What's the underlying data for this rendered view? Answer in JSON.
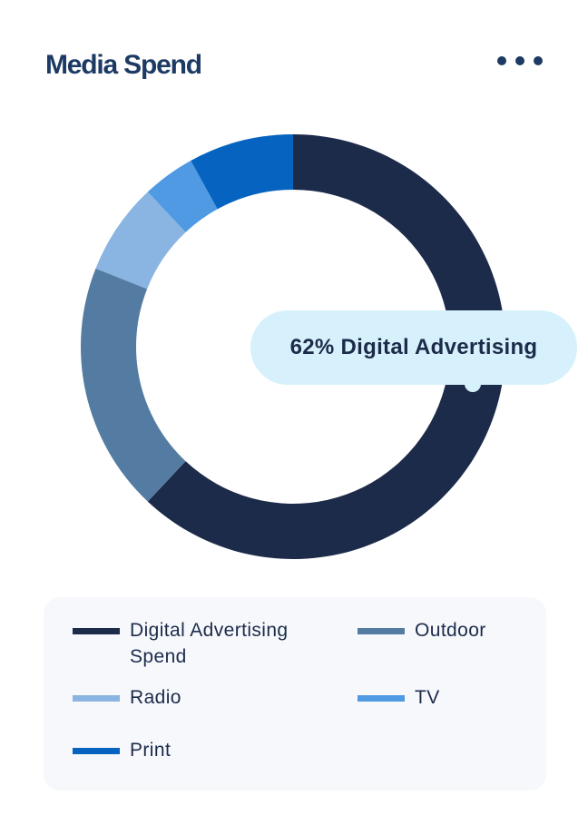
{
  "header": {
    "title": "Media Spend",
    "more_icon": "more-horizontal-icon"
  },
  "tooltip": {
    "text": "62% Digital Advertising"
  },
  "chart_data": {
    "type": "pie",
    "variant": "donut",
    "unit": "%",
    "slices": [
      {
        "label": "Digital Advertising Spend",
        "value": 62,
        "color": "#1c2b4a"
      },
      {
        "label": "Outdoor",
        "value": 19,
        "color": "#547ca2"
      },
      {
        "label": "Radio",
        "value": 7,
        "color": "#8ab4e1"
      },
      {
        "label": "TV",
        "value": 4,
        "color": "#4f9ae3"
      },
      {
        "label": "Print",
        "value": 8,
        "color": "#0663bf"
      }
    ],
    "highlight": "Digital Advertising Spend"
  },
  "legend": {
    "items": [
      {
        "label": "Digital Advertising Spend",
        "color": "#1c2b4a"
      },
      {
        "label": "Outdoor",
        "color": "#547ca2"
      },
      {
        "label": "Radio",
        "color": "#8ab4e1"
      },
      {
        "label": "TV",
        "color": "#4f9ae3"
      },
      {
        "label": "Print",
        "color": "#0663bf"
      }
    ]
  }
}
